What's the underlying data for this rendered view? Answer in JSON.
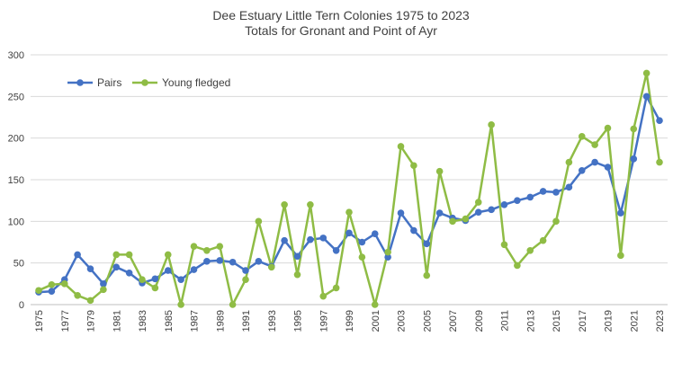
{
  "chart_data": {
    "type": "line",
    "title": "Dee Estuary Little Tern Colonies 1975 to 2023",
    "subtitle": "Totals for Gronant and Point of Ayr",
    "xlabel": "",
    "ylabel": "",
    "ylim": [
      0,
      300
    ],
    "yticks": [
      0,
      50,
      100,
      150,
      200,
      250,
      300
    ],
    "grid": true,
    "legend_position": "top-left",
    "x": [
      1975,
      1976,
      1977,
      1978,
      1979,
      1980,
      1981,
      1982,
      1983,
      1984,
      1985,
      1986,
      1987,
      1988,
      1989,
      1990,
      1991,
      1992,
      1993,
      1994,
      1995,
      1996,
      1997,
      1998,
      1999,
      2000,
      2001,
      2002,
      2003,
      2004,
      2005,
      2006,
      2007,
      2008,
      2009,
      2010,
      2011,
      2012,
      2013,
      2014,
      2015,
      2016,
      2017,
      2018,
      2019,
      2020,
      2021,
      2022,
      2023
    ],
    "xtick_labels": [
      "1975",
      "1977",
      "1979",
      "1981",
      "1983",
      "1985",
      "1987",
      "1989",
      "1991",
      "1993",
      "1995",
      "1997",
      "1999",
      "2001",
      "2003",
      "2005",
      "2007",
      "2009",
      "2011",
      "2013",
      "2015",
      "2017",
      "2019",
      "2021",
      "2023"
    ],
    "series": [
      {
        "name": "Pairs",
        "color": "#4472c4",
        "values": [
          15,
          16,
          30,
          60,
          43,
          25,
          45,
          38,
          26,
          31,
          41,
          30,
          42,
          52,
          53,
          51,
          41,
          52,
          46,
          77,
          58,
          78,
          80,
          65,
          86,
          75,
          85,
          57,
          110,
          89,
          73,
          110,
          104,
          101,
          111,
          114,
          120,
          125,
          129,
          136,
          135,
          141,
          161,
          171,
          165,
          110,
          175,
          250,
          221
        ]
      },
      {
        "name": "Young fledged",
        "color": "#8fbc45",
        "values": [
          17,
          24,
          25,
          11,
          5,
          18,
          60,
          60,
          30,
          20,
          60,
          0,
          70,
          65,
          70,
          0,
          30,
          100,
          45,
          120,
          36,
          120,
          10,
          20,
          111,
          57,
          0,
          63,
          190,
          167,
          35,
          160,
          100,
          103,
          123,
          216,
          72,
          47,
          65,
          77,
          100,
          171,
          202,
          192,
          212,
          59,
          211,
          278,
          171
        ]
      }
    ]
  }
}
